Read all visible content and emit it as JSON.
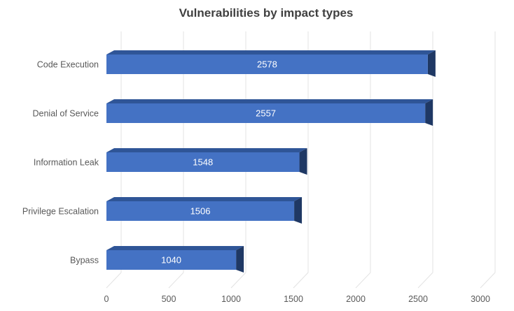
{
  "title": "Vulnerabilities by impact types",
  "chart_data": {
    "type": "bar",
    "orientation": "horizontal",
    "style": "3d-oblique",
    "title": "Vulnerabilities by impact types",
    "xlabel": "",
    "ylabel": "",
    "categories": [
      "Code Execution",
      "Denial of Service",
      "Information Leak",
      "Privilege Escalation",
      "Bypass"
    ],
    "values": [
      2578,
      2557,
      1548,
      1506,
      1040
    ],
    "data_labels": [
      "2578",
      "2557",
      "1548",
      "1506",
      "1040"
    ],
    "xlim": [
      0,
      3000
    ],
    "x_ticks": [
      0,
      500,
      1000,
      1500,
      2000,
      2500,
      3000
    ],
    "x_tick_labels": [
      "0",
      "500",
      "1000",
      "1500",
      "2000",
      "2500",
      "3000"
    ],
    "grid": true,
    "legend": false,
    "data_labels_position": "center-inside",
    "colors": {
      "bar_front": "#4472C4",
      "bar_top": "#2F5597",
      "bar_end": "#1F3864",
      "gridline": "#E3E3E3",
      "title_text": "#404040",
      "axis_text": "#595959",
      "value_text": "#FFFFFF",
      "background": "#FFFFFF"
    }
  }
}
